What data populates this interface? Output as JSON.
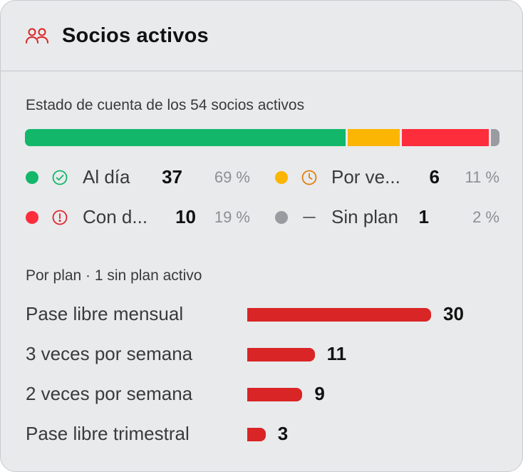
{
  "header": {
    "title": "Socios activos",
    "icon": "users-icon",
    "icon_color": "#d92525"
  },
  "summary": {
    "label": "Estado de cuenta de los 54 socios activos",
    "total": 54
  },
  "statuses": [
    {
      "label": "Al día",
      "count": "37",
      "count_value": 37,
      "percent": "69 %",
      "color": "#12b76a",
      "icon": "check-circle-icon"
    },
    {
      "label": "Por ve...",
      "count": "6",
      "count_value": 6,
      "percent": "11 %",
      "color": "#fbb604",
      "icon": "clock-icon"
    },
    {
      "label": "Con d...",
      "count": "10",
      "count_value": 10,
      "percent": "19 %",
      "color": "#fd2d3c",
      "icon": "alert-circle-icon"
    },
    {
      "label": "Sin plan",
      "count": "1",
      "count_value": 1,
      "percent": "2 %",
      "color": "#9a9aa1",
      "icon": "dash-icon"
    }
  ],
  "plans": {
    "label": "Por plan · 1 sin plan activo",
    "bar_color": "#d92525",
    "items": [
      {
        "label": "Pase libre mensual",
        "count": "30",
        "value": 30
      },
      {
        "label": "3 veces por semana",
        "count": "11",
        "value": 11
      },
      {
        "label": "2 veces por semana",
        "count": "9",
        "value": 9
      },
      {
        "label": "Pase libre trimestral",
        "count": "3",
        "value": 3
      }
    ]
  }
}
